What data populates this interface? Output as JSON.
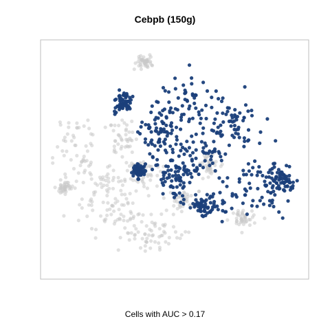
{
  "chart_data": {
    "type": "scatter",
    "title": "Cebpb (150g)",
    "xlabel": "Cells with AUC > 0.17",
    "ylabel": "",
    "grid": false,
    "legend": "none",
    "axes_visible": false,
    "colors": {
      "below_threshold": "#c8c8c8",
      "above_threshold": "#1a3f7a",
      "frame": "#bdbdbd"
    },
    "point_groups": [
      {
        "label": "AUC <= 0.17",
        "color_key": "below_threshold",
        "opacity": 0.55,
        "n": 520,
        "regions": [
          {
            "cx": 0.33,
            "cy": 0.78,
            "rx": 0.16,
            "ry": 0.11
          },
          {
            "cx": 0.22,
            "cy": 0.7,
            "rx": 0.12,
            "ry": 0.1
          },
          {
            "cx": 0.42,
            "cy": 0.84,
            "rx": 0.1,
            "ry": 0.07
          },
          {
            "cx": 0.12,
            "cy": 0.45,
            "rx": 0.09,
            "ry": 0.14
          },
          {
            "cx": 0.22,
            "cy": 0.58,
            "rx": 0.09,
            "ry": 0.08
          },
          {
            "cx": 0.38,
            "cy": 0.56,
            "rx": 0.06,
            "ry": 0.06
          },
          {
            "cx": 0.3,
            "cy": 0.4,
            "rx": 0.05,
            "ry": 0.09
          },
          {
            "cx": 0.54,
            "cy": 0.68,
            "rx": 0.07,
            "ry": 0.05
          },
          {
            "cx": 0.77,
            "cy": 0.76,
            "rx": 0.05,
            "ry": 0.04
          },
          {
            "cx": 0.07,
            "cy": 0.62,
            "rx": 0.03,
            "ry": 0.04
          },
          {
            "cx": 0.38,
            "cy": 0.07,
            "rx": 0.03,
            "ry": 0.03
          },
          {
            "cx": 0.64,
            "cy": 0.52,
            "rx": 0.04,
            "ry": 0.05
          }
        ]
      },
      {
        "label": "AUC > 0.17",
        "color_key": "above_threshold",
        "opacity": 0.95,
        "n": 640,
        "regions": [
          {
            "cx": 0.58,
            "cy": 0.48,
            "rx": 0.12,
            "ry": 0.09
          },
          {
            "cx": 0.53,
            "cy": 0.26,
            "rx": 0.13,
            "ry": 0.12
          },
          {
            "cx": 0.72,
            "cy": 0.34,
            "rx": 0.11,
            "ry": 0.09
          },
          {
            "cx": 0.82,
            "cy": 0.62,
            "rx": 0.12,
            "ry": 0.11
          },
          {
            "cx": 0.62,
            "cy": 0.71,
            "rx": 0.08,
            "ry": 0.05
          },
          {
            "cx": 0.5,
            "cy": 0.58,
            "rx": 0.07,
            "ry": 0.07
          },
          {
            "cx": 0.44,
            "cy": 0.38,
            "rx": 0.07,
            "ry": 0.09
          },
          {
            "cx": 0.92,
            "cy": 0.6,
            "rx": 0.05,
            "ry": 0.06
          },
          {
            "cx": 0.3,
            "cy": 0.25,
            "rx": 0.03,
            "ry": 0.04
          },
          {
            "cx": 0.36,
            "cy": 0.55,
            "rx": 0.02,
            "ry": 0.03
          }
        ]
      }
    ]
  }
}
